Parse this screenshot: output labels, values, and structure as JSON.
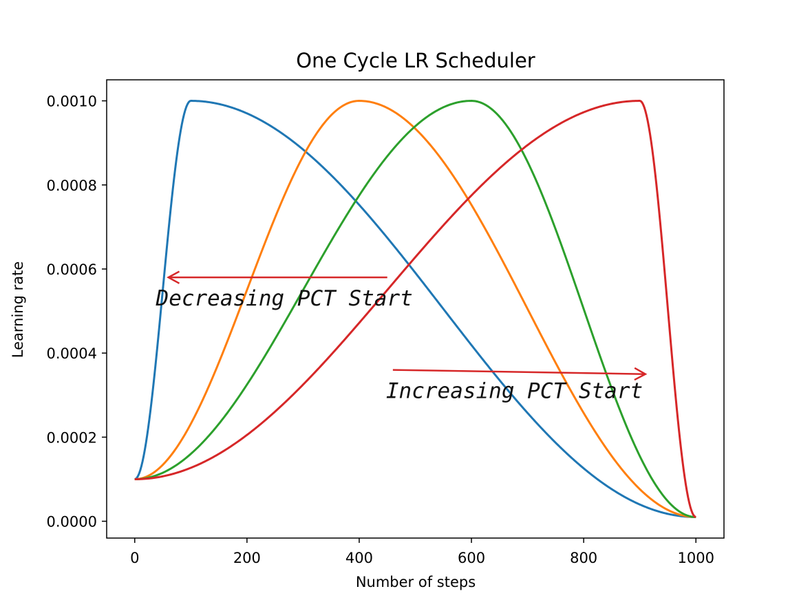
{
  "chart_data": {
    "type": "line",
    "title": "One Cycle LR Scheduler",
    "xlabel": "Number of steps",
    "ylabel": "Learning rate",
    "xlim": [
      -50,
      1050
    ],
    "ylim": [
      -4e-05,
      0.00105
    ],
    "xticks": [
      0,
      200,
      400,
      600,
      800,
      1000
    ],
    "xtick_labels": [
      "0",
      "200",
      "400",
      "600",
      "800",
      "1000"
    ],
    "yticks": [
      0,
      0.0002,
      0.0004,
      0.0006,
      0.0008,
      0.001
    ],
    "ytick_labels": [
      "0.0000",
      "0.0002",
      "0.0004",
      "0.0006",
      "0.0008",
      "0.0010"
    ],
    "grid": false,
    "legend": "none",
    "total_steps": 1000,
    "max_lr": 0.001,
    "initial_lr": 0.0001,
    "final_lr": 1e-05,
    "series": [
      {
        "pct_start": 0.1,
        "color": "#1f77b4"
      },
      {
        "pct_start": 0.4,
        "color": "#ff7f0e"
      },
      {
        "pct_start": 0.6,
        "color": "#2ca02c"
      },
      {
        "pct_start": 0.9,
        "color": "#d62728"
      }
    ],
    "annotations": [
      {
        "text": "Decreasing PCT Start",
        "arrow_from": [
          450,
          0.00058
        ],
        "arrow_to": [
          60,
          0.00058
        ],
        "text_at": [
          50,
          0.00052
        ],
        "color": "#d62728"
      },
      {
        "text": "Increasing PCT Start",
        "arrow_from": [
          460,
          0.00036
        ],
        "arrow_to": [
          910,
          0.00035
        ],
        "text_at": [
          460,
          0.0003
        ],
        "color": "#d62728"
      }
    ]
  }
}
